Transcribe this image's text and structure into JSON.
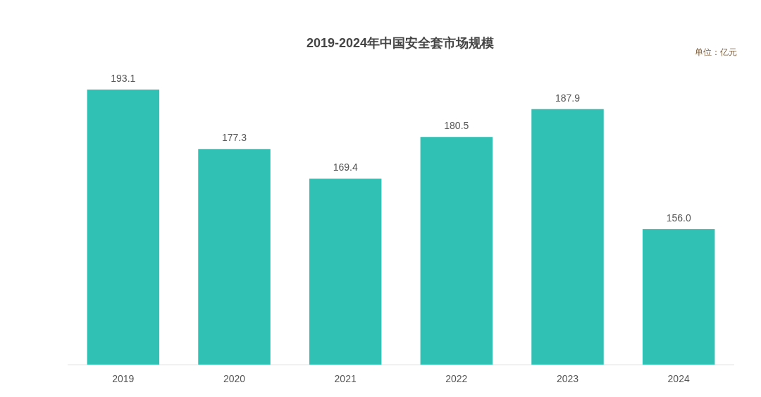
{
  "chart_data": {
    "type": "bar",
    "title": "2019-2024年中国安全套市场规模",
    "annotations": [
      "单位：亿元"
    ],
    "categories": [
      "2019",
      "2020",
      "2021",
      "2022",
      "2023",
      "2024"
    ],
    "values": [
      193.1,
      177.3,
      169.4,
      180.5,
      187.9,
      156.0
    ],
    "value_labels": [
      "193.1",
      "177.3",
      "169.4",
      "180.5",
      "187.9",
      "156.0"
    ],
    "color": "#31c1b4",
    "ylim": [
      120,
      193.1
    ]
  }
}
